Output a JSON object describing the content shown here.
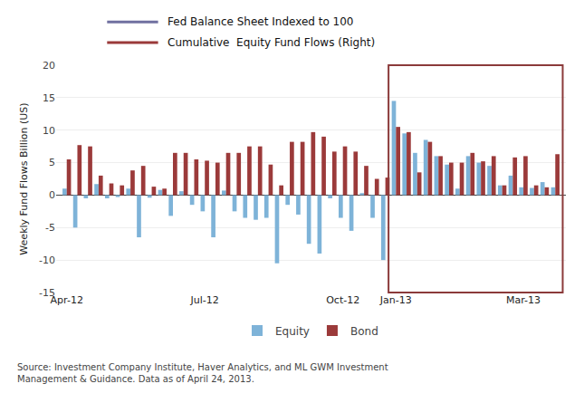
{
  "chart_data": {
    "type": "bar",
    "ylabel": "Weekly Fund Flows Billion (US)",
    "categories": [
      "Apr-12",
      null,
      null,
      null,
      null,
      null,
      null,
      null,
      null,
      null,
      null,
      null,
      null,
      "Jul-12",
      null,
      null,
      null,
      null,
      null,
      null,
      null,
      null,
      null,
      null,
      null,
      null,
      "Oct-12",
      null,
      null,
      null,
      null,
      "Jan-13",
      null,
      null,
      null,
      null,
      null,
      null,
      null,
      null,
      null,
      null,
      null,
      "Mar-13",
      null,
      null,
      null
    ],
    "series": [
      {
        "name": "Equity",
        "color": "#7EB3D8",
        "values": [
          1.0,
          -5.0,
          -0.5,
          1.7,
          -0.5,
          -0.3,
          1.0,
          -6.5,
          -0.4,
          0.8,
          -3.2,
          0.6,
          -1.5,
          -2.5,
          -6.5,
          0.7,
          -2.5,
          -3.5,
          -3.8,
          -3.5,
          -10.5,
          -1.5,
          -3.0,
          -7.5,
          -9.0,
          -0.5,
          -3.5,
          -5.5,
          0.3,
          -3.5,
          -10.0,
          14.5,
          9.5,
          6.5,
          8.5,
          6.0,
          4.7,
          1.0,
          6.0,
          5.0,
          4.5,
          1.5,
          3.0,
          1.2,
          1.1,
          2.0,
          1.2
        ]
      },
      {
        "name": "Bond",
        "color": "#9B3A3A",
        "values": [
          5.5,
          7.7,
          7.5,
          3.0,
          1.8,
          1.5,
          3.8,
          4.5,
          1.3,
          1.0,
          6.5,
          6.5,
          5.5,
          5.3,
          5.0,
          6.5,
          6.5,
          7.5,
          7.5,
          4.7,
          1.5,
          8.2,
          8.2,
          9.7,
          9.0,
          6.7,
          7.5,
          6.7,
          4.5,
          2.5,
          2.7,
          10.5,
          9.7,
          3.5,
          8.2,
          6.0,
          5.0,
          5.0,
          6.5,
          5.2,
          6.0,
          1.5,
          5.8,
          6.0,
          1.5,
          1.2,
          6.3
        ]
      }
    ],
    "ylim": [
      -15,
      20
    ],
    "yticks": [
      -15,
      -10,
      -5,
      0,
      5,
      10,
      15,
      20
    ],
    "grid": true,
    "legend": "bottom",
    "highlight": {
      "from": "Jan-13",
      "color": "#8B3A3A"
    },
    "annotations": [
      {
        "text": "Fed Balance Sheet Indexed to 100",
        "color": "#7070A0"
      },
      {
        "text": "Cumulative  Equity Fund Flows (Right)",
        "color": "#9B3A3A"
      },
      {
        "text": "Source: Investment Company Institute, Haver Analytics, and ML GWM Investment\nManagement & Guidance. Data as of April 24, 2013."
      }
    ]
  }
}
